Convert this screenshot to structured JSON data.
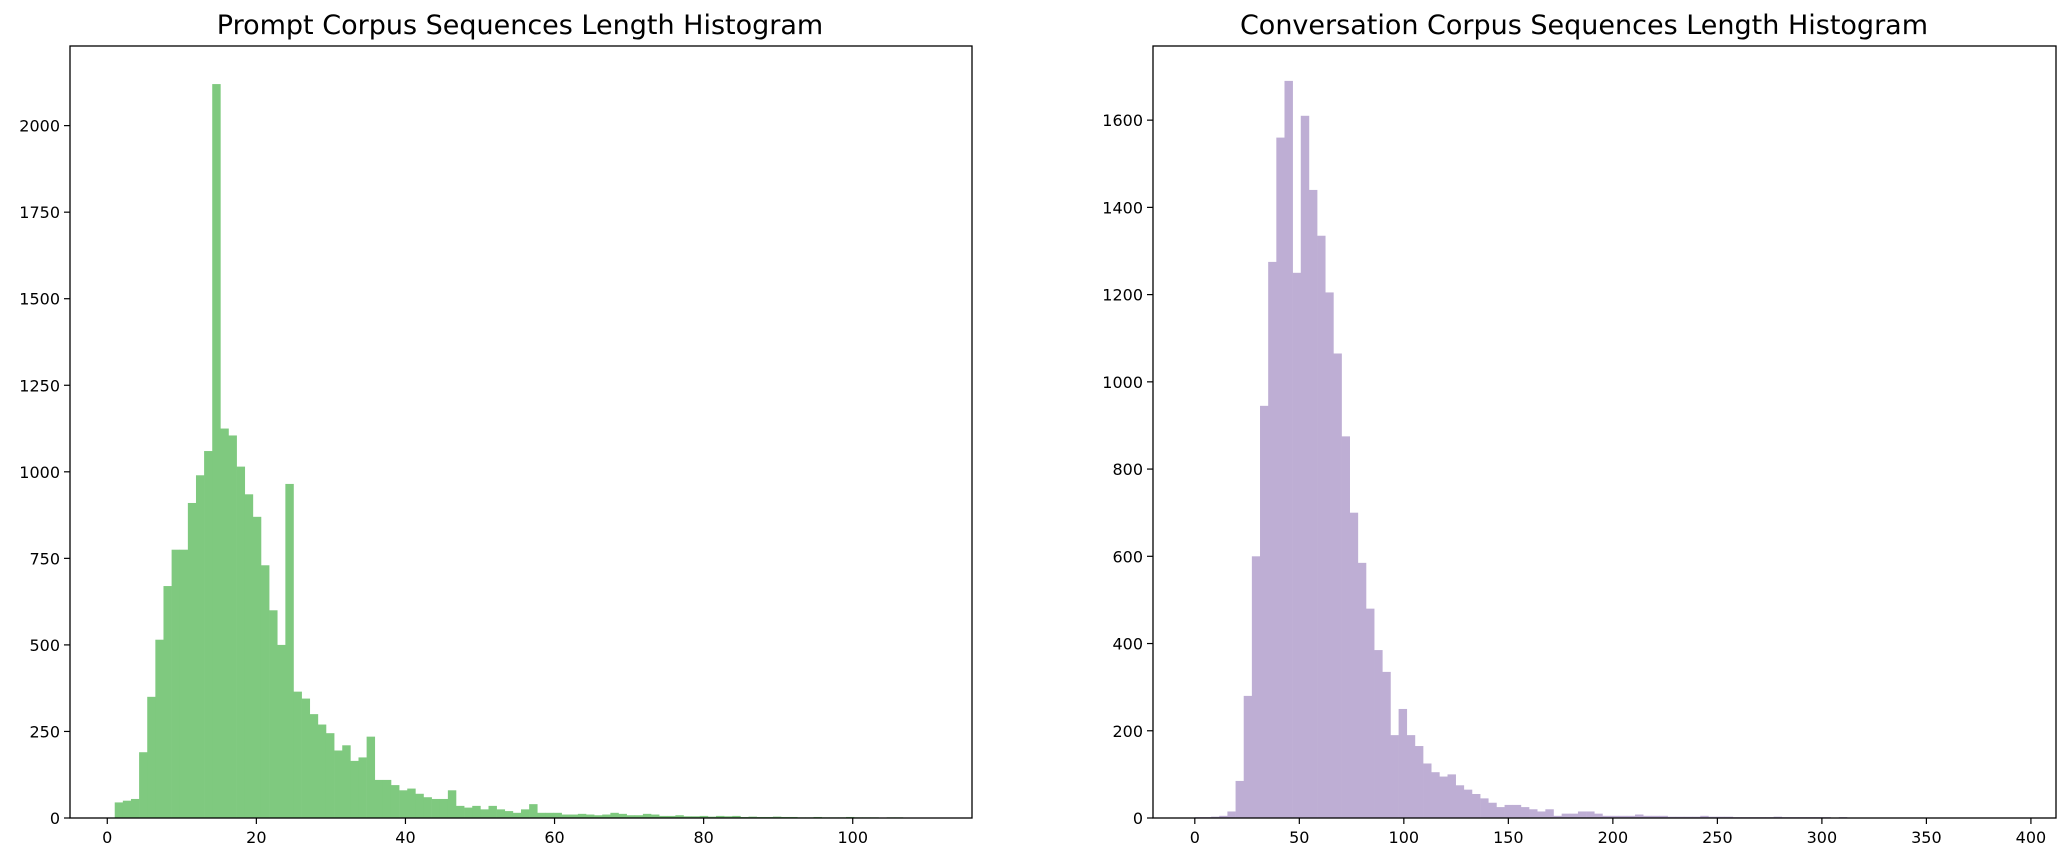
{
  "chart_data": [
    {
      "type": "bar",
      "title": "Prompt Corpus Sequences Length Histogram",
      "xlabel": "",
      "ylabel": "",
      "xlim": [
        -5,
        116
      ],
      "ylim": [
        0,
        2230
      ],
      "xticks": [
        0,
        20,
        40,
        60,
        80,
        100
      ],
      "yticks": [
        0,
        250,
        500,
        750,
        1000,
        1250,
        1500,
        1750,
        2000
      ],
      "grid": false,
      "color": "#7fc97f",
      "bin_start": 1,
      "bin_width": 1.09,
      "values": [
        45,
        50,
        55,
        190,
        350,
        515,
        670,
        775,
        775,
        910,
        990,
        1060,
        2120,
        1125,
        1105,
        1015,
        935,
        870,
        730,
        600,
        500,
        965,
        365,
        345,
        300,
        270,
        245,
        195,
        210,
        165,
        175,
        235,
        110,
        110,
        95,
        80,
        85,
        70,
        60,
        55,
        55,
        80,
        35,
        30,
        35,
        25,
        35,
        25,
        20,
        15,
        25,
        40,
        15,
        15,
        15,
        10,
        10,
        12,
        10,
        8,
        10,
        15,
        12,
        8,
        8,
        12,
        10,
        6,
        6,
        8,
        5,
        5,
        6,
        4,
        6,
        5,
        6,
        3,
        4,
        3,
        3,
        4,
        3,
        3,
        2,
        2,
        3,
        2,
        2,
        2,
        3,
        2,
        2,
        2,
        1,
        2,
        2,
        1,
        1,
        1
      ]
    },
    {
      "type": "bar",
      "title": "Conversation Corpus Sequences Length Histogram",
      "xlabel": "",
      "ylabel": "",
      "xlim": [
        -20,
        412
      ],
      "ylim": [
        0,
        1770
      ],
      "xticks": [
        0,
        50,
        100,
        150,
        200,
        250,
        300,
        350,
        400
      ],
      "yticks": [
        0,
        200,
        400,
        600,
        800,
        1000,
        1200,
        1400,
        1600
      ],
      "grid": false,
      "color": "#beaed4",
      "bin_start": 0,
      "bin_width": 3.9,
      "values": [
        2,
        2,
        3,
        5,
        15,
        85,
        280,
        600,
        945,
        1275,
        1560,
        1690,
        1250,
        1610,
        1440,
        1335,
        1205,
        1065,
        875,
        700,
        585,
        480,
        385,
        335,
        190,
        250,
        190,
        165,
        125,
        105,
        95,
        100,
        75,
        65,
        55,
        45,
        35,
        25,
        30,
        30,
        25,
        20,
        15,
        20,
        5,
        10,
        10,
        15,
        15,
        10,
        5,
        5,
        5,
        5,
        8,
        5,
        5,
        5,
        3,
        3,
        3,
        3,
        5,
        3,
        3,
        3,
        2,
        2,
        2,
        2,
        2,
        3,
        2,
        2,
        2,
        2,
        2,
        2,
        1,
        2,
        1,
        1,
        1,
        1,
        1,
        1,
        1,
        1,
        1,
        1,
        1,
        1,
        1,
        1,
        1,
        1,
        1,
        1,
        1,
        1
      ]
    }
  ]
}
